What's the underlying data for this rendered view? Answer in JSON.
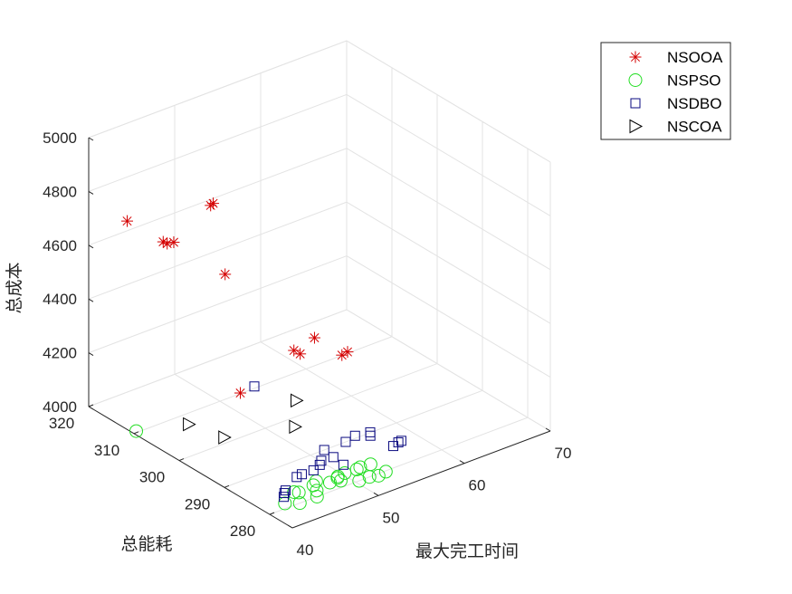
{
  "chart_data": {
    "type": "scatter",
    "dimension": "3d",
    "xlabel": "最大完工时间",
    "ylabel": "总能耗",
    "zlabel": "总成本",
    "xlim": [
      40,
      70
    ],
    "ylim": [
      275,
      320
    ],
    "zlim": [
      4000,
      5000
    ],
    "x_ticks": [
      "40",
      "50",
      "60",
      "70"
    ],
    "y_ticks": [
      "280",
      "290",
      "300",
      "310",
      "320"
    ],
    "z_ticks": [
      "4000",
      "4200",
      "4400",
      "4600",
      "4800",
      "5000"
    ],
    "grid": true,
    "legend_position": "top-right",
    "series": [
      {
        "name": "NSOOA",
        "marker": "asterisk",
        "color": "#d40000",
        "points": [
          [
            40.0,
            311.5,
            4775
          ],
          [
            43.4,
            310.0,
            4672
          ],
          [
            43.6,
            309.5,
            4668
          ],
          [
            44.1,
            309.0,
            4672
          ],
          [
            47.6,
            307.5,
            4782
          ],
          [
            47.9,
            307.5,
            4786
          ],
          [
            47.6,
            304.3,
            4558
          ],
          [
            45.0,
            296.0,
            4231
          ],
          [
            51.7,
            295.5,
            4301
          ],
          [
            51.6,
            296.7,
            4303
          ],
          [
            54.1,
            296.9,
            4318
          ],
          [
            53.5,
            289.7,
            4333
          ],
          [
            54.0,
            289.4,
            4342
          ]
        ]
      },
      {
        "name": "NSPSO",
        "marker": "circle",
        "color": "#22dd22",
        "points": [
          [
            40.0,
            309.5,
            4014
          ],
          [
            42.4,
            281.2,
            4000
          ],
          [
            43.5,
            280.0,
            4000
          ],
          [
            45.5,
            280.0,
            4000
          ],
          [
            44.4,
            283.0,
            4000
          ],
          [
            44.7,
            282.5,
            4000
          ],
          [
            46.2,
            281.4,
            4000
          ],
          [
            46.6,
            282.9,
            4000
          ],
          [
            47.3,
            283.6,
            4000
          ],
          [
            48.1,
            282.1,
            4000
          ],
          [
            49.2,
            282.5,
            4000
          ],
          [
            49.1,
            281.6,
            4000
          ],
          [
            49.4,
            282.8,
            4000
          ],
          [
            50.3,
            283.0,
            4000
          ],
          [
            50.4,
            280.0,
            4000
          ],
          [
            51.6,
            280.0,
            4000
          ],
          [
            51.6,
            282.8,
            4000
          ],
          [
            52.1,
            283.0,
            4000
          ],
          [
            53.2,
            282.8,
            4000
          ],
          [
            52.4,
            279.5,
            4000
          ],
          [
            53.4,
            279.8,
            4000
          ]
        ]
      },
      {
        "name": "NSDBO",
        "marker": "square",
        "color": "#0a0a80",
        "points": [
          [
            43.1,
            282.8,
            4000
          ],
          [
            43.6,
            283.6,
            4000
          ],
          [
            44.0,
            284.1,
            4000
          ],
          [
            46.4,
            286.2,
            4000
          ],
          [
            47.1,
            286.4,
            4000
          ],
          [
            48.4,
            286.3,
            4000
          ],
          [
            49.5,
            287.0,
            4000
          ],
          [
            51.2,
            285.0,
            4000
          ],
          [
            51.4,
            287.6,
            4000
          ],
          [
            50.1,
            287.8,
            4000
          ],
          [
            51.6,
            290.0,
            4000
          ],
          [
            54.1,
            290.0,
            4000
          ],
          [
            55.5,
            290.6,
            4000
          ],
          [
            56.6,
            289.3,
            4000
          ],
          [
            57.0,
            290.1,
            4000
          ],
          [
            57.0,
            285.0,
            4000
          ],
          [
            57.8,
            285.4,
            4000
          ],
          [
            58.2,
            285.5,
            4000
          ],
          [
            54.0,
            310.0,
            4007
          ]
        ]
      },
      {
        "name": "NSCOA",
        "marker": "triangle-right",
        "color": "#000000",
        "points": [
          [
            39.8,
            297.5,
            4162
          ],
          [
            44.5,
            298.6,
            4046
          ],
          [
            50.2,
            293.8,
            4065
          ],
          [
            52.0,
            296.9,
            4110
          ]
        ]
      }
    ]
  }
}
